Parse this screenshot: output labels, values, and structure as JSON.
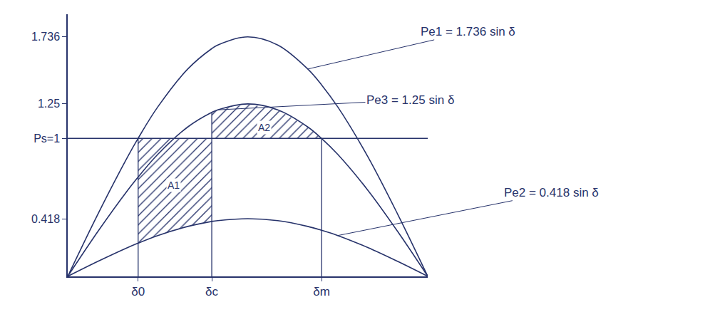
{
  "chart_data": {
    "type": "line",
    "x": [
      0,
      15,
      30,
      35.2,
      45,
      60,
      72,
      75,
      90,
      105,
      120,
      126.9,
      135,
      150,
      165,
      180
    ],
    "series": [
      {
        "name": "Pe1 = 1.736 sin δ",
        "color": "#27336b",
        "values": [
          0,
          0.449,
          0.868,
          1.001,
          1.228,
          1.503,
          1.651,
          1.677,
          1.736,
          1.677,
          1.503,
          1.388,
          1.228,
          0.868,
          0.449,
          0
        ]
      },
      {
        "name": "Pe3 = 1.25 sin δ",
        "color": "#27336b",
        "values": [
          0,
          0.324,
          0.625,
          0.72,
          0.884,
          1.083,
          1.189,
          1.207,
          1.25,
          1.207,
          1.083,
          1.0,
          0.884,
          0.625,
          0.324,
          0
        ]
      },
      {
        "name": "Pe2 = 0.418 sin δ",
        "color": "#27336b",
        "values": [
          0,
          0.108,
          0.209,
          0.241,
          0.296,
          0.362,
          0.398,
          0.404,
          0.418,
          0.404,
          0.362,
          0.334,
          0.296,
          0.209,
          0.108,
          0
        ]
      }
    ],
    "ps_line": {
      "x": [
        0,
        180
      ],
      "values": [
        1,
        1
      ],
      "color": "#27336b"
    },
    "verticals": [
      {
        "x": 35.2,
        "y": 1
      },
      {
        "x": 72,
        "y": 1.189
      },
      {
        "x": 126.9,
        "y": 1.0
      }
    ],
    "areas": [
      {
        "label": "A1",
        "x": [
          35.2,
          45,
          60,
          72
        ],
        "upper": [
          1,
          1,
          1,
          1
        ],
        "lower": [
          0.241,
          0.296,
          0.362,
          0.398
        ]
      },
      {
        "label": "A2",
        "x": [
          72,
          75,
          90,
          105,
          120,
          126.9
        ],
        "upper": [
          1.189,
          1.207,
          1.25,
          1.207,
          1.083,
          1.0
        ],
        "lower": [
          1,
          1,
          1,
          1,
          1,
          1
        ]
      }
    ],
    "xlim": [
      0,
      180
    ],
    "xticks": [
      {
        "value": 35.2,
        "label": "δ0"
      },
      {
        "value": 72,
        "label": "δc"
      },
      {
        "value": 126.9,
        "label": "δm"
      }
    ],
    "ylim": [
      0,
      1.9
    ],
    "yticks": [
      0.418,
      {
        "value": 1,
        "label": "Ps=1"
      },
      1.25,
      1.736
    ],
    "grid": false
  }
}
